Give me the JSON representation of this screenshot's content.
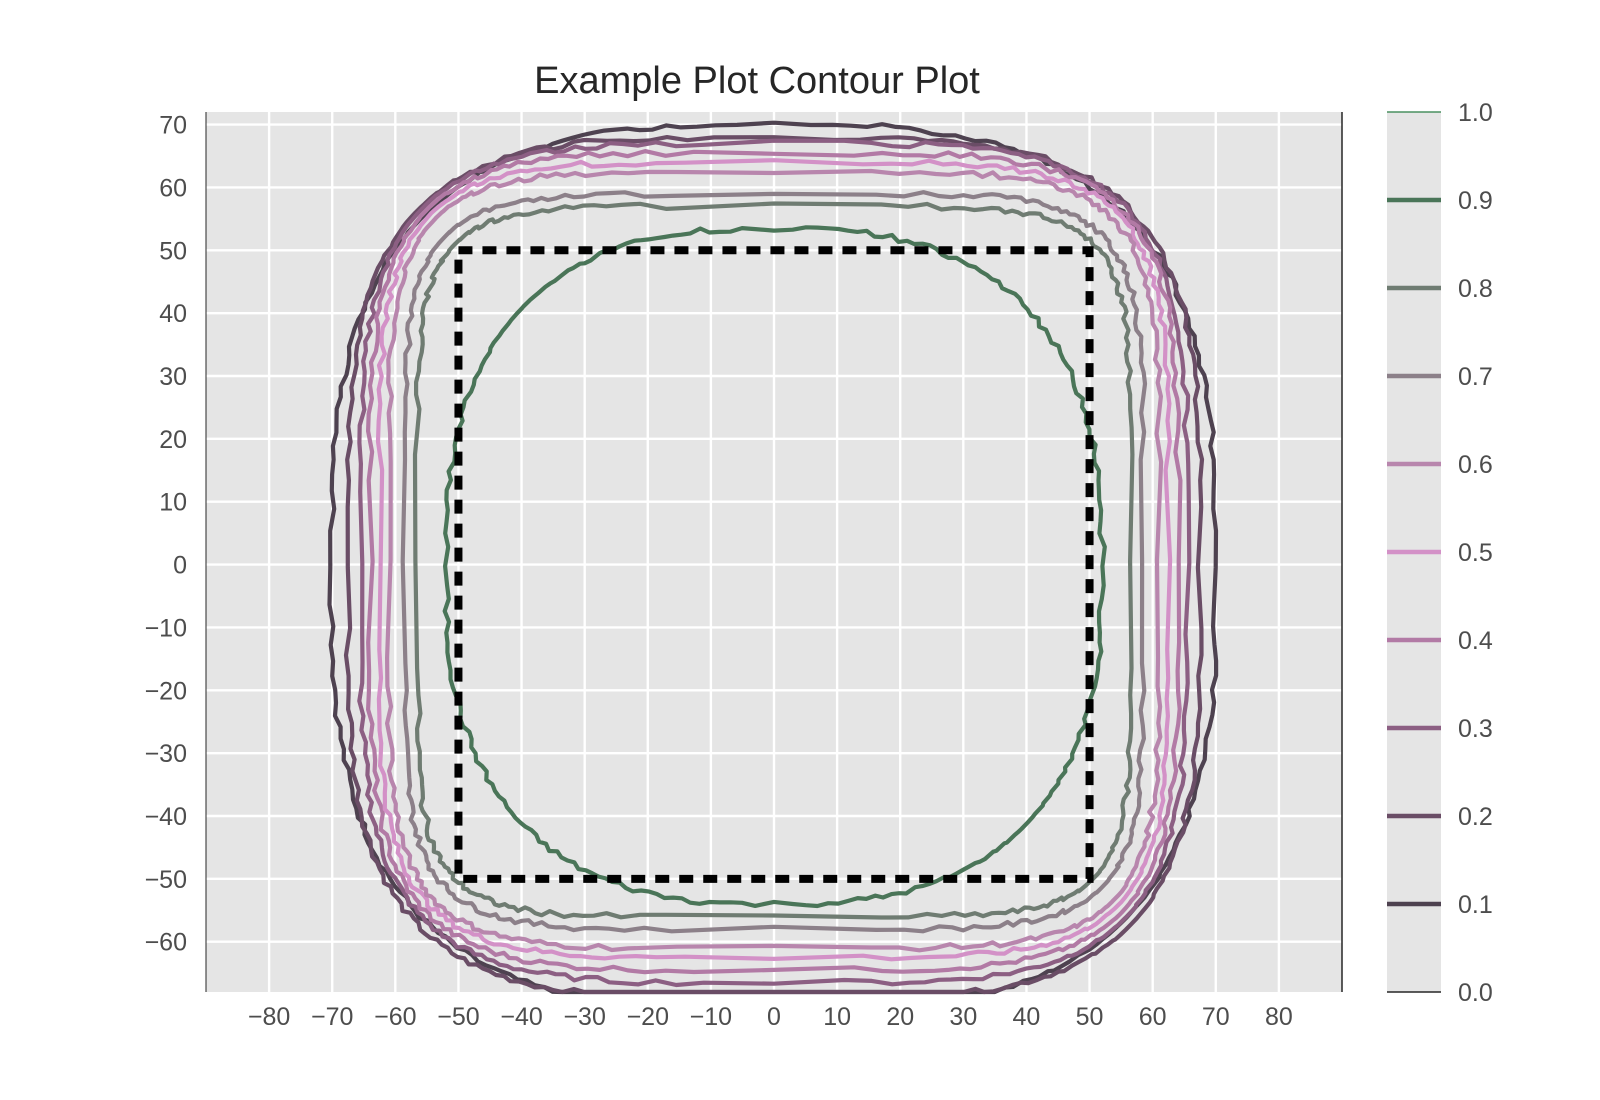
{
  "chart_data": {
    "type": "contour",
    "title": "Example Plot Contour Plot",
    "xlabel": "",
    "ylabel": "",
    "xlim": [
      -90,
      90
    ],
    "ylim": [
      -68,
      72
    ],
    "xticks": [
      -80,
      -70,
      -60,
      -50,
      -40,
      -30,
      -20,
      -10,
      0,
      10,
      20,
      30,
      40,
      50,
      60,
      70,
      80
    ],
    "yticks": [
      70,
      60,
      50,
      40,
      30,
      20,
      10,
      0,
      -10,
      -20,
      -30,
      -40,
      -50,
      -60
    ],
    "grid": true,
    "colorbar": {
      "ticks": [
        "1.0",
        "0.9",
        "0.8",
        "0.7",
        "0.6",
        "0.5",
        "0.4",
        "0.3",
        "0.2",
        "0.1",
        "0.0"
      ],
      "range": [
        0.0,
        1.0
      ]
    },
    "levels": [
      {
        "level": 0.1,
        "color": "#4e4250",
        "half_width": 70,
        "y_top": 70,
        "y_bottom": -71,
        "radius": 15
      },
      {
        "level": 0.2,
        "color": "#6a4d66",
        "half_width": 67.5,
        "y_top": 68,
        "y_bottom": -69,
        "radius": 13
      },
      {
        "level": 0.3,
        "color": "#8c5f83",
        "half_width": 65.5,
        "y_top": 67,
        "y_bottom": -66.5,
        "radius": 12
      },
      {
        "level": 0.4,
        "color": "#b27aa5",
        "half_width": 64,
        "y_top": 65.5,
        "y_bottom": -64.5,
        "radius": 11
      },
      {
        "level": 0.5,
        "color": "#d391c7",
        "half_width": 62.5,
        "y_top": 64,
        "y_bottom": -62.5,
        "radius": 10
      },
      {
        "level": 0.6,
        "color": "#b886ad",
        "half_width": 61,
        "y_top": 62.5,
        "y_bottom": -61,
        "radius": 9
      },
      {
        "level": 0.7,
        "color": "#8c8089",
        "half_width": 58.5,
        "y_top": 59,
        "y_bottom": -58,
        "radius": 8
      },
      {
        "level": 0.8,
        "color": "#6f7c72",
        "half_width": 56.5,
        "y_top": 57,
        "y_bottom": -56,
        "radius": 7
      },
      {
        "level": 0.9,
        "color": "#4a7558",
        "half_width": 52,
        "y_top": 53.5,
        "y_bottom": -54,
        "radius": 16
      }
    ],
    "reference_box": {
      "x": [
        -50,
        50
      ],
      "y": [
        -50,
        50
      ],
      "style": "dashed",
      "color": "#000000"
    }
  }
}
